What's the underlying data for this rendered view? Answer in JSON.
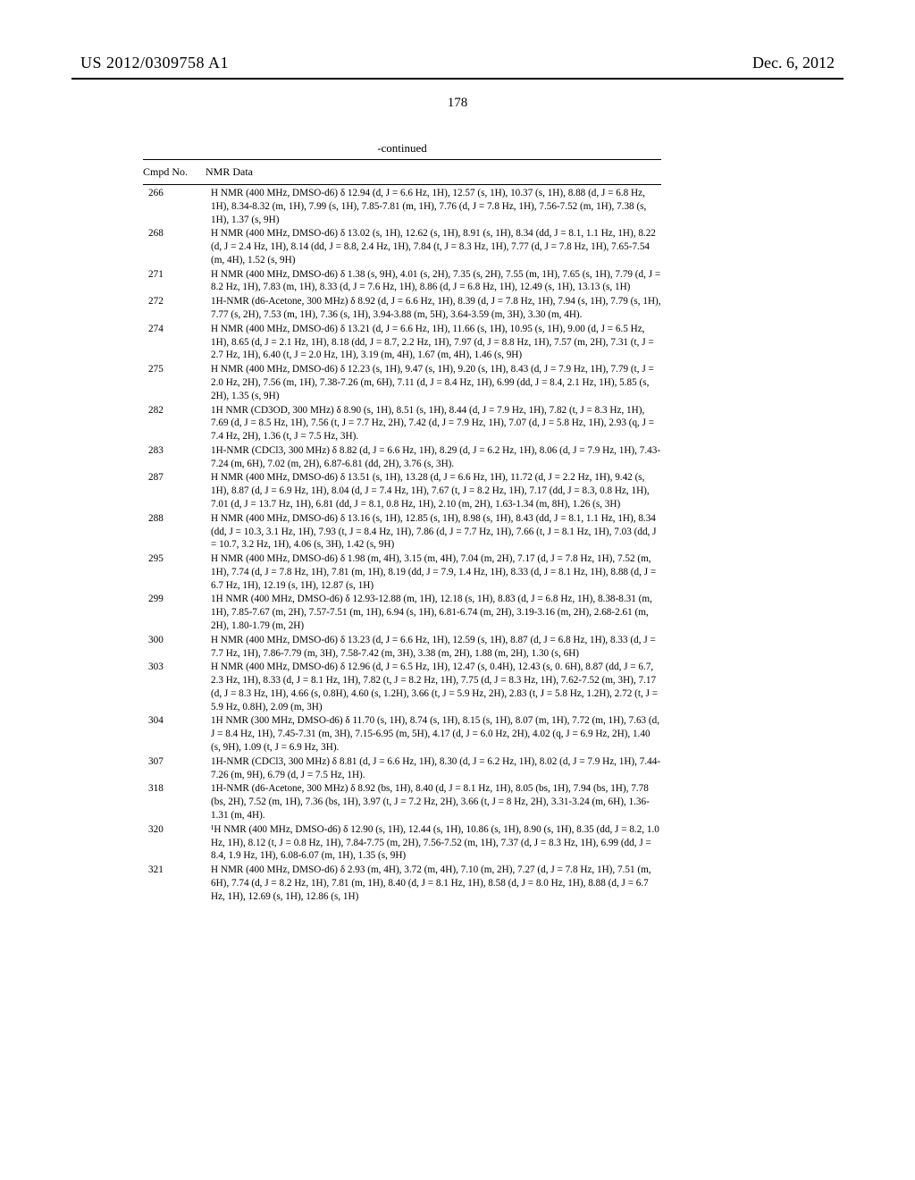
{
  "header": {
    "left": "US 2012/0309758 A1",
    "right": "Dec. 6, 2012"
  },
  "page_number": "178",
  "continued_label": "-continued",
  "table": {
    "col_no_header": "Cmpd No.",
    "col_data_header": "NMR Data",
    "rows": [
      {
        "no": "266",
        "data": "H NMR (400 MHz, DMSO-d6) δ 12.94 (d, J = 6.6 Hz, 1H), 12.57 (s, 1H), 10.37 (s, 1H), 8.88 (d, J = 6.8 Hz, 1H), 8.34-8.32 (m, 1H), 7.99 (s, 1H), 7.85-7.81 (m, 1H), 7.76 (d, J = 7.8 Hz, 1H), 7.56-7.52 (m, 1H), 7.38 (s, 1H), 1.37 (s, 9H)"
      },
      {
        "no": "268",
        "data": "H NMR (400 MHz, DMSO-d6) δ 13.02 (s, 1H), 12.62 (s, 1H), 8.91 (s, 1H), 8.34 (dd, J = 8.1, 1.1 Hz, 1H), 8.22 (d, J = 2.4 Hz, 1H), 8.14 (dd, J = 8.8, 2.4 Hz, 1H), 7.84 (t, J = 8.3 Hz, 1H), 7.77 (d, J = 7.8 Hz, 1H), 7.65-7.54 (m, 4H), 1.52 (s, 9H)"
      },
      {
        "no": "271",
        "data": "H NMR (400 MHz, DMSO-d6) δ 1.38 (s, 9H), 4.01 (s, 2H), 7.35 (s, 2H), 7.55 (m, 1H), 7.65 (s, 1H), 7.79 (d, J = 8.2 Hz, 1H), 7.83 (m, 1H), 8.33 (d, J = 7.6 Hz, 1H), 8.86 (d, J = 6.8 Hz, 1H), 12.49 (s, 1H), 13.13 (s, 1H)"
      },
      {
        "no": "272",
        "data": "1H-NMR (d6-Acetone, 300 MHz) δ 8.92 (d, J = 6.6 Hz, 1H), 8.39 (d, J = 7.8 Hz, 1H), 7.94 (s, 1H), 7.79 (s, 1H), 7.77 (s, 2H), 7.53 (m, 1H), 7.36 (s, 1H), 3.94-3.88 (m, 5H), 3.64-3.59 (m, 3H), 3.30 (m, 4H)."
      },
      {
        "no": "274",
        "data": "H NMR (400 MHz, DMSO-d6) δ 13.21 (d, J = 6.6 Hz, 1H), 11.66 (s, 1H), 10.95 (s, 1H), 9.00 (d, J = 6.5 Hz, 1H), 8.65 (d, J = 2.1 Hz, 1H), 8.18 (dd, J = 8.7, 2.2 Hz, 1H), 7.97 (d, J = 8.8 Hz, 1H), 7.57 (m, 2H), 7.31 (t, J = 2.7 Hz, 1H), 6.40 (t, J = 2.0 Hz, 1H), 3.19 (m, 4H), 1.67 (m, 4H), 1.46 (s, 9H)"
      },
      {
        "no": "275",
        "data": "H NMR (400 MHz, DMSO-d6) δ 12.23 (s, 1H), 9.47 (s, 1H), 9.20 (s, 1H), 8.43 (d, J = 7.9 Hz, 1H), 7.79 (t, J = 2.0 Hz, 2H), 7.56 (m, 1H), 7.38-7.26 (m, 6H), 7.11 (d, J = 8.4 Hz, 1H), 6.99 (dd, J = 8.4, 2.1 Hz, 1H), 5.85 (s, 2H), 1.35 (s, 9H)"
      },
      {
        "no": "282",
        "data": "1H NMR (CD3OD, 300 MHz) δ 8.90 (s, 1H), 8.51 (s, 1H), 8.44 (d, J = 7.9 Hz, 1H), 7.82 (t, J = 8.3 Hz, 1H), 7.69 (d, J = 8.5 Hz, 1H), 7.56 (t, J = 7.7 Hz, 2H), 7.42 (d, J = 7.9 Hz, 1H), 7.07 (d, J = 5.8 Hz, 1H), 2.93 (q, J = 7.4 Hz, 2H), 1.36 (t, J = 7.5 Hz, 3H)."
      },
      {
        "no": "283",
        "data": "1H-NMR (CDCl3, 300 MHz) δ 8.82 (d, J = 6.6 Hz, 1H), 8.29 (d, J = 6.2 Hz, 1H), 8.06 (d, J = 7.9 Hz, 1H), 7.43-7.24 (m, 6H), 7.02 (m, 2H), 6.87-6.81 (dd, 2H), 3.76 (s, 3H)."
      },
      {
        "no": "287",
        "data": "H NMR (400 MHz, DMSO-d6) δ 13.51 (s, 1H), 13.28 (d, J = 6.6 Hz, 1H), 11.72 (d, J = 2.2 Hz, 1H), 9.42 (s, 1H), 8.87 (d, J = 6.9 Hz, 1H), 8.04 (d, J = 7.4 Hz, 1H), 7.67 (t, J = 8.2 Hz, 1H), 7.17 (dd, J = 8.3, 0.8 Hz, 1H), 7.01 (d, J = 13.7 Hz, 1H), 6.81 (dd, J = 8.1, 0.8 Hz, 1H), 2.10 (m, 2H), 1.63-1.34 (m, 8H), 1.26 (s, 3H)"
      },
      {
        "no": "288",
        "data": "H NMR (400 MHz, DMSO-d6) δ 13.16 (s, 1H), 12.85 (s, 1H), 8.98 (s, 1H), 8.43 (dd, J = 8.1, 1.1 Hz, 1H), 8.34 (dd, J = 10.3, 3.1 Hz, 1H), 7.93 (t, J = 8.4 Hz, 1H), 7.86 (d, J = 7.7 Hz, 1H), 7.66 (t, J = 8.1 Hz, 1H), 7.03 (dd, J = 10.7, 3.2 Hz, 1H), 4.06 (s, 3H), 1.42 (s, 9H)"
      },
      {
        "no": "295",
        "data": "H NMR (400 MHz, DMSO-d6) δ 1.98 (m, 4H), 3.15 (m, 4H), 7.04 (m, 2H), 7.17 (d, J = 7.8 Hz, 1H), 7.52 (m, 1H), 7.74 (d, J = 7.8 Hz, 1H), 7.81 (m, 1H), 8.19 (dd, J = 7.9, 1.4 Hz, 1H), 8.33 (d, J = 8.1 Hz, 1H), 8.88 (d, J = 6.7 Hz, 1H), 12.19 (s, 1H), 12.87 (s, 1H)"
      },
      {
        "no": "299",
        "data": "1H NMR (400 MHz, DMSO-d6) δ 12.93-12.88 (m, 1H), 12.18 (s, 1H), 8.83 (d, J = 6.8 Hz, 1H), 8.38-8.31 (m, 1H), 7.85-7.67 (m, 2H), 7.57-7.51 (m, 1H), 6.94 (s, 1H), 6.81-6.74 (m, 2H), 3.19-3.16 (m, 2H), 2.68-2.61 (m, 2H), 1.80-1.79 (m, 2H)"
      },
      {
        "no": "300",
        "data": "H NMR (400 MHz, DMSO-d6) δ 13.23 (d, J = 6.6 Hz, 1H), 12.59 (s, 1H), 8.87 (d, J = 6.8 Hz, 1H), 8.33 (d, J = 7.7 Hz, 1H), 7.86-7.79 (m, 3H), 7.58-7.42 (m, 3H), 3.38 (m, 2H), 1.88 (m, 2H), 1.30 (s, 6H)"
      },
      {
        "no": "303",
        "data": "H NMR (400 MHz, DMSO-d6) δ 12.96 (d, J = 6.5 Hz, 1H), 12.47 (s, 0.4H), 12.43 (s, 0. 6H), 8.87 (dd, J = 6.7, 2.3 Hz, 1H), 8.33 (d, J = 8.1 Hz, 1H), 7.82 (t, J = 8.2 Hz, 1H), 7.75 (d, J = 8.3 Hz, 1H), 7.62-7.52 (m, 3H), 7.17 (d, J = 8.3 Hz, 1H), 4.66 (s, 0.8H), 4.60 (s, 1.2H), 3.66 (t, J = 5.9 Hz, 2H), 2.83 (t, J = 5.8 Hz, 1.2H), 2.72 (t, J = 5.9 Hz, 0.8H), 2.09 (m, 3H)"
      },
      {
        "no": "304",
        "data": "1H NMR (300 MHz, DMSO-d6) δ 11.70 (s, 1H), 8.74 (s, 1H), 8.15 (s, 1H), 8.07 (m, 1H), 7.72 (m, 1H), 7.63 (d, J = 8.4 Hz, 1H), 7.45-7.31 (m, 3H), 7.15-6.95 (m, 5H), 4.17 (d, J = 6.0 Hz, 2H), 4.02 (q, J = 6.9 Hz, 2H), 1.40 (s, 9H), 1.09 (t, J = 6.9 Hz, 3H)."
      },
      {
        "no": "307",
        "data": "1H-NMR (CDCl3, 300 MHz) δ 8.81 (d, J = 6.6 Hz, 1H), 8.30 (d, J = 6.2 Hz, 1H), 8.02 (d, J = 7.9 Hz, 1H), 7.44-7.26 (m, 9H), 6.79 (d, J = 7.5 Hz, 1H)."
      },
      {
        "no": "318",
        "data": "1H-NMR (d6-Acetone, 300 MHz) δ 8.92 (bs, 1H), 8.40 (d, J = 8.1 Hz, 1H), 8.05 (bs, 1H), 7.94 (bs, 1H), 7.78 (bs, 2H), 7.52 (m, 1H), 7.36 (bs, 1H), 3.97 (t, J = 7.2 Hz, 2H), 3.66 (t, J = 8 Hz, 2H), 3.31-3.24 (m, 6H), 1.36-1.31 (m, 4H)."
      },
      {
        "no": "320",
        "data": "¹H NMR (400 MHz, DMSO-d6) δ 12.90 (s, 1H), 12.44 (s, 1H), 10.86 (s, 1H), 8.90 (s, 1H), 8.35 (dd, J = 8.2, 1.0 Hz, 1H), 8.12 (t, J = 0.8 Hz, 1H), 7.84-7.75 (m, 2H), 7.56-7.52 (m, 1H), 7.37 (d, J = 8.3 Hz, 1H), 6.99 (dd, J = 8.4, 1.9 Hz, 1H), 6.08-6.07 (m, 1H), 1.35 (s, 9H)"
      },
      {
        "no": "321",
        "data": "H NMR (400 MHz, DMSO-d6) δ 2.93 (m, 4H), 3.72 (m, 4H), 7.10 (m, 2H), 7.27 (d, J = 7.8 Hz, 1H), 7.51 (m, 6H), 7.74 (d, J = 8.2 Hz, 1H), 7.81 (m, 1H), 8.40 (d, J = 8.1 Hz, 1H), 8.58 (d, J = 8.0 Hz, 1H), 8.88 (d, J = 6.7 Hz, 1H), 12.69 (s, 1H), 12.86 (s, 1H)"
      }
    ]
  }
}
